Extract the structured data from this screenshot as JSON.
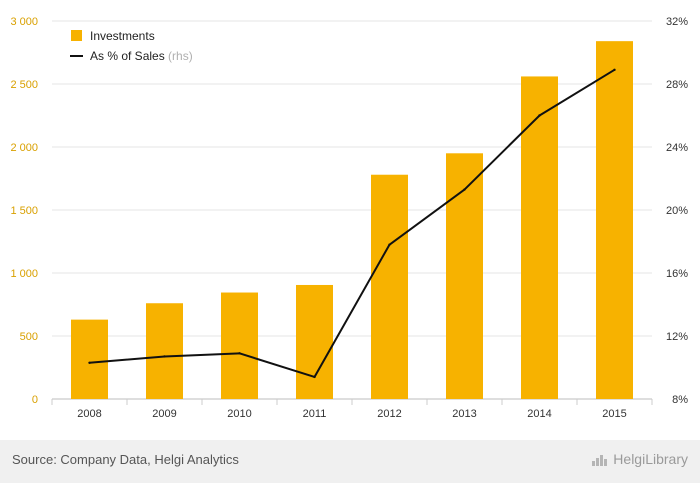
{
  "chart_data": {
    "type": "bar",
    "categories": [
      "2008",
      "2009",
      "2010",
      "2011",
      "2012",
      "2013",
      "2014",
      "2015"
    ],
    "series": [
      {
        "name": "Investments",
        "kind": "bar",
        "axis": "left",
        "color": "#f7b200",
        "values": [
          630,
          760,
          845,
          905,
          1780,
          1950,
          2560,
          2840
        ]
      },
      {
        "name": "As % of Sales",
        "kind": "line",
        "axis": "right",
        "color": "#111111",
        "values": [
          10.3,
          10.7,
          10.9,
          9.4,
          17.8,
          21.3,
          26.0,
          28.9
        ]
      }
    ],
    "ylim": [
      0,
      3000
    ],
    "yticks": [
      "0",
      "500",
      "1 000",
      "1 500",
      "2 000",
      "2 500",
      "3 000"
    ],
    "y2lim": [
      8,
      32
    ],
    "y2ticks": [
      "8%",
      "12%",
      "16%",
      "20%",
      "24%",
      "28%",
      "32%"
    ],
    "legend": [
      {
        "label": "Investments",
        "suffix": ""
      },
      {
        "label": "As % of Sales",
        "suffix": "(rhs)"
      }
    ],
    "legend_position": "top-left",
    "grid": "horizontal"
  },
  "footer": {
    "source": "Source: Company Data, Helgi Analytics",
    "brand": "HelgiLibrary"
  }
}
